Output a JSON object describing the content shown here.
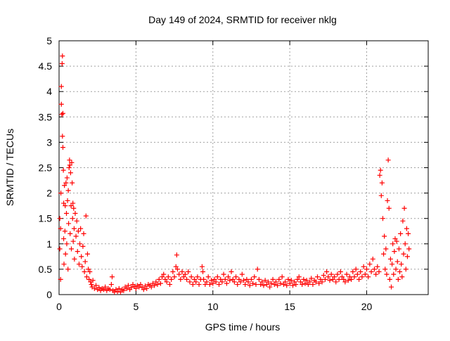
{
  "chart_data": {
    "type": "scatter",
    "title": "Day 149 of 2024, SRMTID for receiver nklg",
    "xlabel": "GPS time / hours",
    "ylabel": "SRMTID / TECUs",
    "xlim": [
      0,
      24
    ],
    "ylim": [
      0,
      5
    ],
    "grid": true,
    "marker": "+",
    "x_ticks": [
      {
        "value": 0,
        "label": "0"
      },
      {
        "value": 5,
        "label": "5"
      },
      {
        "value": 10,
        "label": "10"
      },
      {
        "value": 15,
        "label": "15"
      },
      {
        "value": 20,
        "label": "20"
      }
    ],
    "y_ticks": [
      {
        "value": 0,
        "label": "0"
      },
      {
        "value": 0.5,
        "label": "0.5"
      },
      {
        "value": 1,
        "label": "1"
      },
      {
        "value": 1.5,
        "label": "1.5"
      },
      {
        "value": 2,
        "label": "2"
      },
      {
        "value": 2.5,
        "label": "2.5"
      },
      {
        "value": 3,
        "label": "3"
      },
      {
        "value": 3.5,
        "label": "3.5"
      },
      {
        "value": 4,
        "label": "4"
      },
      {
        "value": 4.5,
        "label": "4.5"
      },
      {
        "value": 5,
        "label": "5"
      }
    ],
    "series": [
      {
        "name": "SRMTID",
        "color": "#ff0000",
        "points": [
          [
            0.05,
            1.5
          ],
          [
            0.05,
            0.9
          ],
          [
            0.1,
            0.3
          ],
          [
            0.1,
            1.3
          ],
          [
            0.12,
            2.0
          ],
          [
            0.15,
            4.1
          ],
          [
            0.15,
            3.75
          ],
          [
            0.18,
            3.55
          ],
          [
            0.2,
            4.55
          ],
          [
            0.22,
            4.7
          ],
          [
            0.22,
            3.12
          ],
          [
            0.25,
            3.57
          ],
          [
            0.25,
            2.9
          ],
          [
            0.28,
            2.45
          ],
          [
            0.3,
            1.8
          ],
          [
            0.3,
            1.1
          ],
          [
            0.32,
            0.6
          ],
          [
            0.35,
            2.15
          ],
          [
            0.38,
            1.25
          ],
          [
            0.4,
            1.75
          ],
          [
            0.42,
            0.8
          ],
          [
            0.45,
            2.2
          ],
          [
            0.48,
            1.6
          ],
          [
            0.5,
            1.0
          ],
          [
            0.52,
            2.3
          ],
          [
            0.55,
            1.85
          ],
          [
            0.58,
            0.5
          ],
          [
            0.6,
            2.05
          ],
          [
            0.62,
            1.4
          ],
          [
            0.65,
            2.5
          ],
          [
            0.68,
            2.65
          ],
          [
            0.7,
            2.55
          ],
          [
            0.72,
            1.2
          ],
          [
            0.75,
            2.4
          ],
          [
            0.78,
            1.75
          ],
          [
            0.8,
            0.9
          ],
          [
            0.82,
            2.6
          ],
          [
            0.85,
            2.2
          ],
          [
            0.88,
            1.5
          ],
          [
            0.9,
            1.8
          ],
          [
            0.92,
            1.05
          ],
          [
            0.95,
            1.7
          ],
          [
            0.98,
            1.3
          ],
          [
            1.0,
            0.7
          ],
          [
            1.05,
            1.6
          ],
          [
            1.1,
            1.15
          ],
          [
            1.15,
            1.45
          ],
          [
            1.2,
            0.85
          ],
          [
            1.25,
            1.25
          ],
          [
            1.3,
            0.6
          ],
          [
            1.35,
            1.0
          ],
          [
            1.4,
            1.3
          ],
          [
            1.45,
            0.75
          ],
          [
            1.5,
            0.55
          ],
          [
            1.55,
            0.95
          ],
          [
            1.6,
            1.2
          ],
          [
            1.65,
            0.45
          ],
          [
            1.7,
            0.65
          ],
          [
            1.75,
            1.55
          ],
          [
            1.8,
            0.35
          ],
          [
            1.85,
            0.8
          ],
          [
            1.9,
            0.5
          ],
          [
            1.95,
            0.3
          ],
          [
            2.0,
            0.45
          ],
          [
            2.05,
            0.25
          ],
          [
            2.1,
            0.2
          ],
          [
            2.15,
            0.15
          ],
          [
            2.2,
            0.28
          ],
          [
            2.3,
            0.12
          ],
          [
            2.4,
            0.18
          ],
          [
            2.5,
            0.1
          ],
          [
            2.6,
            0.14
          ],
          [
            2.7,
            0.08
          ],
          [
            2.8,
            0.12
          ],
          [
            2.9,
            0.1
          ],
          [
            3.0,
            0.15
          ],
          [
            3.1,
            0.08
          ],
          [
            3.2,
            0.12
          ],
          [
            3.3,
            0.1
          ],
          [
            3.4,
            0.2
          ],
          [
            3.45,
            0.35
          ],
          [
            3.5,
            0.08
          ],
          [
            3.6,
            0.05
          ],
          [
            3.7,
            0.1
          ],
          [
            3.8,
            0.06
          ],
          [
            3.9,
            0.12
          ],
          [
            4.0,
            0.05
          ],
          [
            4.1,
            0.1
          ],
          [
            4.2,
            0.08
          ],
          [
            4.3,
            0.15
          ],
          [
            4.4,
            0.12
          ],
          [
            4.5,
            0.18
          ],
          [
            4.6,
            0.1
          ],
          [
            4.7,
            0.14
          ],
          [
            4.8,
            0.2
          ],
          [
            4.9,
            0.16
          ],
          [
            5.0,
            0.12
          ],
          [
            5.1,
            0.18
          ],
          [
            5.2,
            0.15
          ],
          [
            5.3,
            0.2
          ],
          [
            5.4,
            0.14
          ],
          [
            5.5,
            0.1
          ],
          [
            5.6,
            0.17
          ],
          [
            5.7,
            0.12
          ],
          [
            5.8,
            0.2
          ],
          [
            5.9,
            0.18
          ],
          [
            6.0,
            0.15
          ],
          [
            6.1,
            0.22
          ],
          [
            6.2,
            0.18
          ],
          [
            6.3,
            0.25
          ],
          [
            6.4,
            0.2
          ],
          [
            6.5,
            0.3
          ],
          [
            6.6,
            0.22
          ],
          [
            6.7,
            0.35
          ],
          [
            6.8,
            0.4
          ],
          [
            6.9,
            0.3
          ],
          [
            7.0,
            0.25
          ],
          [
            7.1,
            0.35
          ],
          [
            7.2,
            0.2
          ],
          [
            7.3,
            0.3
          ],
          [
            7.4,
            0.45
          ],
          [
            7.5,
            0.35
          ],
          [
            7.6,
            0.55
          ],
          [
            7.65,
            0.78
          ],
          [
            7.7,
            0.5
          ],
          [
            7.8,
            0.4
          ],
          [
            7.9,
            0.3
          ],
          [
            8.0,
            0.45
          ],
          [
            8.1,
            0.35
          ],
          [
            8.2,
            0.4
          ],
          [
            8.3,
            0.3
          ],
          [
            8.4,
            0.45
          ],
          [
            8.5,
            0.25
          ],
          [
            8.6,
            0.35
          ],
          [
            8.7,
            0.2
          ],
          [
            8.8,
            0.3
          ],
          [
            8.9,
            0.25
          ],
          [
            9.0,
            0.35
          ],
          [
            9.1,
            0.2
          ],
          [
            9.2,
            0.3
          ],
          [
            9.3,
            0.55
          ],
          [
            9.35,
            0.45
          ],
          [
            9.4,
            0.3
          ],
          [
            9.5,
            0.2
          ],
          [
            9.6,
            0.25
          ],
          [
            9.7,
            0.35
          ],
          [
            9.8,
            0.2
          ],
          [
            9.9,
            0.28
          ],
          [
            10.0,
            0.22
          ],
          [
            10.1,
            0.3
          ],
          [
            10.2,
            0.25
          ],
          [
            10.3,
            0.35
          ],
          [
            10.4,
            0.2
          ],
          [
            10.5,
            0.3
          ],
          [
            10.6,
            0.25
          ],
          [
            10.7,
            0.4
          ],
          [
            10.8,
            0.3
          ],
          [
            10.9,
            0.22
          ],
          [
            11.0,
            0.35
          ],
          [
            11.1,
            0.28
          ],
          [
            11.2,
            0.45
          ],
          [
            11.3,
            0.3
          ],
          [
            11.4,
            0.25
          ],
          [
            11.5,
            0.35
          ],
          [
            11.6,
            0.2
          ],
          [
            11.7,
            0.3
          ],
          [
            11.8,
            0.25
          ],
          [
            11.9,
            0.4
          ],
          [
            12.0,
            0.28
          ],
          [
            12.1,
            0.2
          ],
          [
            12.2,
            0.3
          ],
          [
            12.3,
            0.25
          ],
          [
            12.4,
            0.18
          ],
          [
            12.5,
            0.3
          ],
          [
            12.6,
            0.22
          ],
          [
            12.7,
            0.35
          ],
          [
            12.8,
            0.2
          ],
          [
            12.9,
            0.5
          ],
          [
            13.0,
            0.3
          ],
          [
            13.1,
            0.2
          ],
          [
            13.2,
            0.25
          ],
          [
            13.3,
            0.18
          ],
          [
            13.4,
            0.28
          ],
          [
            13.5,
            0.2
          ],
          [
            13.6,
            0.25
          ],
          [
            13.7,
            0.15
          ],
          [
            13.8,
            0.22
          ],
          [
            13.9,
            0.3
          ],
          [
            14.0,
            0.2
          ],
          [
            14.1,
            0.25
          ],
          [
            14.2,
            0.18
          ],
          [
            14.3,
            0.3
          ],
          [
            14.4,
            0.22
          ],
          [
            14.5,
            0.35
          ],
          [
            14.6,
            0.2
          ],
          [
            14.7,
            0.25
          ],
          [
            14.8,
            0.18
          ],
          [
            14.9,
            0.3
          ],
          [
            15.0,
            0.22
          ],
          [
            15.1,
            0.28
          ],
          [
            15.2,
            0.18
          ],
          [
            15.3,
            0.25
          ],
          [
            15.4,
            0.2
          ],
          [
            15.5,
            0.3
          ],
          [
            15.6,
            0.35
          ],
          [
            15.7,
            0.25
          ],
          [
            15.8,
            0.2
          ],
          [
            15.9,
            0.3
          ],
          [
            16.0,
            0.22
          ],
          [
            16.1,
            0.28
          ],
          [
            16.2,
            0.2
          ],
          [
            16.3,
            0.25
          ],
          [
            16.4,
            0.32
          ],
          [
            16.5,
            0.2
          ],
          [
            16.6,
            0.28
          ],
          [
            16.7,
            0.25
          ],
          [
            16.8,
            0.35
          ],
          [
            16.9,
            0.22
          ],
          [
            17.0,
            0.3
          ],
          [
            17.1,
            0.25
          ],
          [
            17.2,
            0.38
          ],
          [
            17.3,
            0.3
          ],
          [
            17.4,
            0.45
          ],
          [
            17.5,
            0.35
          ],
          [
            17.6,
            0.28
          ],
          [
            17.7,
            0.4
          ],
          [
            17.8,
            0.3
          ],
          [
            17.9,
            0.35
          ],
          [
            18.0,
            0.25
          ],
          [
            18.1,
            0.4
          ],
          [
            18.2,
            0.3
          ],
          [
            18.3,
            0.45
          ],
          [
            18.4,
            0.35
          ],
          [
            18.5,
            0.3
          ],
          [
            18.6,
            0.25
          ],
          [
            18.7,
            0.4
          ],
          [
            18.8,
            0.28
          ],
          [
            18.9,
            0.35
          ],
          [
            19.0,
            0.3
          ],
          [
            19.1,
            0.45
          ],
          [
            19.2,
            0.35
          ],
          [
            19.3,
            0.5
          ],
          [
            19.4,
            0.4
          ],
          [
            19.5,
            0.3
          ],
          [
            19.6,
            0.45
          ],
          [
            19.7,
            0.35
          ],
          [
            19.8,
            0.55
          ],
          [
            19.9,
            0.4
          ],
          [
            20.0,
            0.5
          ],
          [
            20.1,
            0.35
          ],
          [
            20.2,
            0.6
          ],
          [
            20.3,
            0.45
          ],
          [
            20.4,
            0.7
          ],
          [
            20.5,
            0.5
          ],
          [
            20.6,
            0.4
          ],
          [
            20.7,
            0.55
          ],
          [
            20.8,
            0.45
          ],
          [
            20.85,
            2.35
          ],
          [
            20.9,
            2.45
          ],
          [
            20.95,
            1.95
          ],
          [
            21.0,
            2.2
          ],
          [
            21.05,
            1.5
          ],
          [
            21.1,
            0.8
          ],
          [
            21.15,
            1.15
          ],
          [
            21.2,
            0.5
          ],
          [
            21.25,
            0.9
          ],
          [
            21.3,
            0.4
          ],
          [
            21.35,
            1.85
          ],
          [
            21.4,
            2.65
          ],
          [
            21.45,
            1.7
          ],
          [
            21.5,
            0.3
          ],
          [
            21.55,
            0.7
          ],
          [
            21.6,
            0.15
          ],
          [
            21.65,
            0.6
          ],
          [
            21.7,
            1.0
          ],
          [
            21.75,
            0.4
          ],
          [
            21.8,
            0.85
          ],
          [
            21.85,
            1.1
          ],
          [
            21.9,
            0.5
          ],
          [
            21.95,
            1.05
          ],
          [
            22.0,
            0.65
          ],
          [
            22.05,
            0.3
          ],
          [
            22.1,
            0.9
          ],
          [
            22.15,
            0.45
          ],
          [
            22.2,
            1.2
          ],
          [
            22.25,
            0.6
          ],
          [
            22.3,
            0.35
          ],
          [
            22.35,
            1.45
          ],
          [
            22.4,
            0.8
          ],
          [
            22.45,
            1.7
          ],
          [
            22.5,
            1.0
          ],
          [
            22.55,
            0.5
          ],
          [
            22.6,
            1.3
          ],
          [
            22.65,
            0.75
          ],
          [
            22.7,
            1.2
          ],
          [
            22.75,
            0.9
          ]
        ]
      }
    ]
  }
}
